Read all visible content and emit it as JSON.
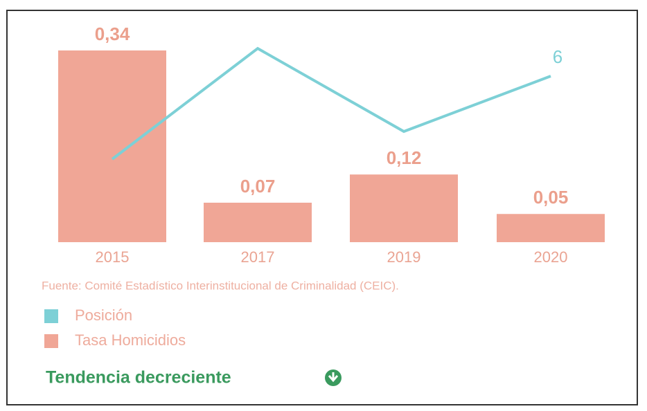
{
  "chart_data": {
    "type": "bar-line",
    "categories": [
      "2015",
      "2017",
      "2019",
      "2020"
    ],
    "series": [
      {
        "name": "Tasa Homicidios",
        "color": "#f0a696",
        "values": [
          0.34,
          0.07,
          0.12,
          0.05
        ],
        "value_labels": [
          "0,34",
          "0,07",
          "0,12",
          "0,05"
        ]
      },
      {
        "name": "Posición",
        "type": "line",
        "color": "#7dd0d6",
        "values": [
          3,
          7,
          4,
          6
        ],
        "value_labels": [
          null,
          null,
          null,
          "6"
        ]
      }
    ],
    "source": "Fuente: Comité Estadístico Interinstitucional de Criminalidad (CEIC).",
    "trend": "Tendencia decreciente"
  }
}
